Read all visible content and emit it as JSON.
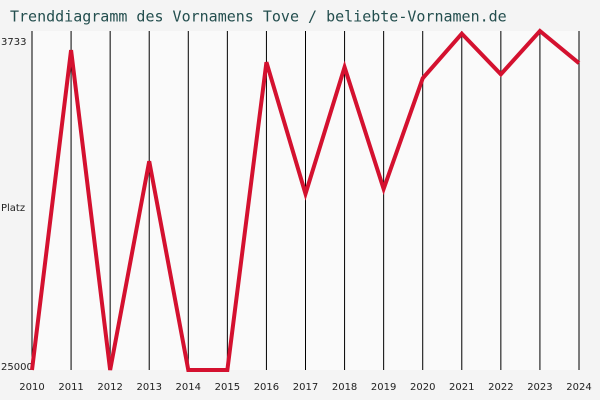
{
  "chart_data": {
    "type": "line",
    "title": "Trenddiagramm des Vornamens Tove / beliebte-Vornamen.de",
    "y_label": "Platz",
    "categories": [
      "2010",
      "2011",
      "2012",
      "2013",
      "2014",
      "2015",
      "2016",
      "2017",
      "2018",
      "2019",
      "2020",
      "2021",
      "2022",
      "2023",
      "2024"
    ],
    "values": [
      25000,
      4930,
      25000,
      11900,
      25000,
      25000,
      5690,
      13950,
      6000,
      13640,
      6700,
      3900,
      6450,
      3733,
      5750
    ],
    "color": "#d4112f",
    "ylim": [
      25000,
      3733
    ],
    "yticks": [
      3733,
      25000
    ],
    "grid": true
  }
}
